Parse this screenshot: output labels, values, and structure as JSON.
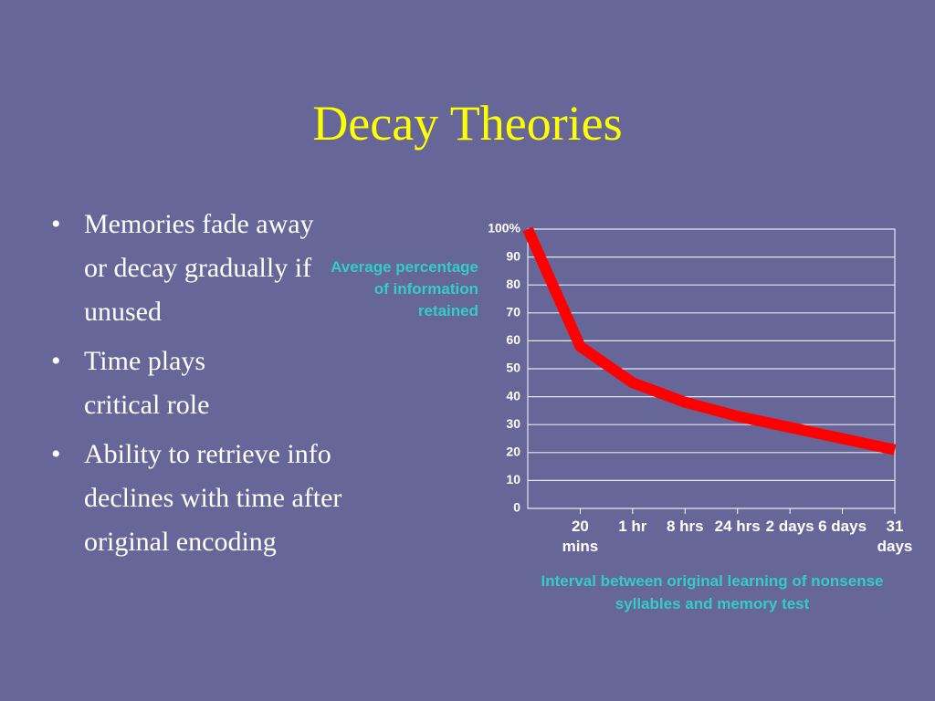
{
  "slide": {
    "title": "Decay Theories",
    "bullets": [
      "Memories fade away or decay gradually if unused",
      "Time plays critical role",
      "Ability to retrieve info declines with time after original encoding"
    ]
  },
  "chart_data": {
    "type": "line",
    "y_label": "Average percentage of information retained",
    "x_label": "Interval between original learning of nonsense syllables and memory test",
    "categories": [
      null,
      "20 mins",
      "1 hr",
      "8 hrs",
      "24 hrs",
      "2 days",
      "6 days",
      "31 days"
    ],
    "values": [
      100,
      58,
      45,
      38,
      33,
      29,
      25,
      21
    ],
    "color": "#ff0000",
    "ylim": [
      0,
      100
    ],
    "yticks": [
      0,
      10,
      20,
      30,
      40,
      50,
      60,
      70,
      80,
      90,
      {
        "value": 100,
        "label": "100%"
      }
    ],
    "grid": true
  }
}
